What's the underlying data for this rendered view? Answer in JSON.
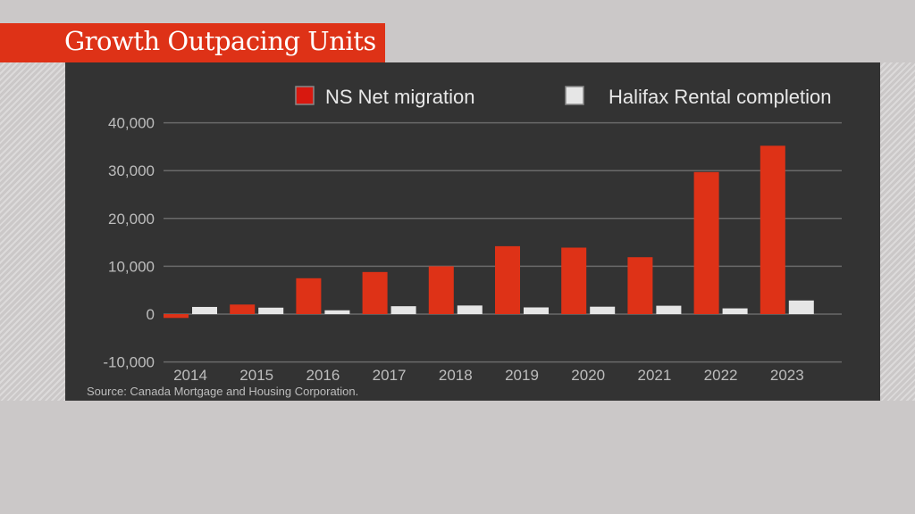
{
  "title": "Growth Outpacing Units",
  "source": "Source: Canada Mortgage and Housing Corporation.",
  "chart_data": {
    "type": "bar",
    "title": "Growth Outpacing Units",
    "categories": [
      "2014",
      "2015",
      "2016",
      "2017",
      "2018",
      "2019",
      "2020",
      "2021",
      "2022",
      "2023"
    ],
    "series": [
      {
        "name": "NS Net migration",
        "color": "#de3217",
        "values": [
          -800,
          2000,
          7500,
          8800,
          10000,
          14200,
          13900,
          11900,
          29700,
          35200
        ]
      },
      {
        "name": "Halifax Rental completion",
        "color": "#e6e6e6",
        "values": [
          1500,
          1350,
          800,
          1650,
          1800,
          1400,
          1550,
          1750,
          1200,
          2850
        ]
      }
    ],
    "ylim": [
      -10000,
      40000
    ],
    "yticks": [
      40000,
      30000,
      20000,
      10000,
      0,
      -10000
    ],
    "ytick_labels": [
      "40,000",
      "30,000",
      "20,000",
      "10,000",
      "0",
      "-10,000"
    ],
    "grid": true,
    "legend": "top"
  }
}
